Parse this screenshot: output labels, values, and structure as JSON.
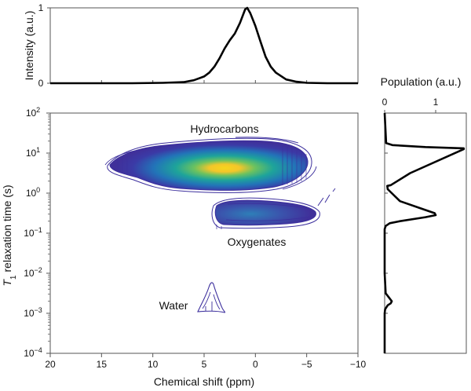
{
  "chart_data": [
    {
      "type": "line",
      "panel": "top-spectrum",
      "ylabel": "Intensity (a.u.)",
      "x_reversed": true,
      "xlim": [
        20,
        -10
      ],
      "ylim": [
        0,
        1
      ],
      "y_ticks": [
        "0",
        "1"
      ],
      "x_ticks": [
        20,
        15,
        10,
        5,
        0,
        -5,
        -10
      ],
      "x": [
        20,
        12,
        9,
        7,
        6,
        5,
        4.5,
        4,
        3.5,
        3,
        2.5,
        2,
        1.5,
        1,
        0.8,
        0.5,
        0,
        -0.5,
        -1,
        -1.5,
        -2,
        -3,
        -4,
        -5,
        -7,
        -10
      ],
      "values": [
        0,
        0,
        0.005,
        0.015,
        0.04,
        0.09,
        0.14,
        0.22,
        0.33,
        0.46,
        0.57,
        0.66,
        0.8,
        0.98,
        1.0,
        0.93,
        0.76,
        0.55,
        0.35,
        0.22,
        0.14,
        0.05,
        0.02,
        0.005,
        0,
        0
      ]
    },
    {
      "type": "heatmap",
      "panel": "t1-chemical-shift-map",
      "xlabel": "Chemical shift (ppm)",
      "ylabel_symbol": "T",
      "ylabel_subscript": "1",
      "ylabel_rest": " relaxation time (s)",
      "x_reversed": true,
      "xlim": [
        20,
        -10
      ],
      "x_ticks": [
        "20",
        "15",
        "10",
        "5",
        "0",
        "−5",
        "−10"
      ],
      "y_scale": "log",
      "ylim": [
        0.0001,
        100
      ],
      "y_tick_exponents": [
        "2",
        "1",
        "0",
        "−1",
        "−2",
        "−3",
        "−4"
      ],
      "annotations": [
        {
          "text": "Hydrocarbons",
          "x": 1.5,
          "y": 22
        },
        {
          "text": "Oxygenates",
          "x": -0.5,
          "y": 0.085
        },
        {
          "text": "Water",
          "x": 8,
          "y": 0.0038
        }
      ],
      "regions": [
        {
          "name": "Hydrocarbons",
          "x_range": [
            14.5,
            -6
          ],
          "y_range": [
            1.3,
            15
          ],
          "peak_x": 1,
          "peak_y": 4.5
        },
        {
          "name": "Oxygenates",
          "x_range": [
            5,
            -8
          ],
          "y_range": [
            0.13,
            0.85
          ],
          "peak_x": 0,
          "peak_y": 0.3
        },
        {
          "name": "Water",
          "x_range": [
            5.2,
            2.8
          ],
          "y_range": [
            0.0013,
            0.0055
          ],
          "peak_x": 4,
          "peak_y": 0.003
        }
      ],
      "colors": {
        "outer": "#3a2e9e",
        "mid": "#1f8fbf",
        "inner": "#2bb38a",
        "core": "#f5d020"
      }
    },
    {
      "type": "line",
      "panel": "population-distribution",
      "title": "Population (a.u.)",
      "xlim": [
        0,
        1.6
      ],
      "x_ticks": [
        "0",
        "1"
      ],
      "y_scale": "log",
      "ylim": [
        0.0001,
        100
      ],
      "log_t1": [
        2,
        1.25,
        1.2,
        1.15,
        1.12,
        1.1,
        0.5,
        0.2,
        0.18,
        0.1,
        0.05,
        -0.2,
        -0.4,
        -0.5,
        -0.55,
        -0.6,
        -0.7,
        -0.75,
        -0.82,
        -0.9,
        -1.1,
        -2.0,
        -2.5,
        -2.6,
        -2.7,
        -2.75,
        -2.8,
        -2.9,
        -3.0,
        -4
      ],
      "values": [
        0,
        0.03,
        0.15,
        0.8,
        1.55,
        1.55,
        0.5,
        0.12,
        0.05,
        0.06,
        0.1,
        0.3,
        0.75,
        0.98,
        1.0,
        0.8,
        0.3,
        0.1,
        0.02,
        0,
        0,
        0,
        0.02,
        0.08,
        0.14,
        0.12,
        0.06,
        0.01,
        0,
        0
      ]
    }
  ]
}
